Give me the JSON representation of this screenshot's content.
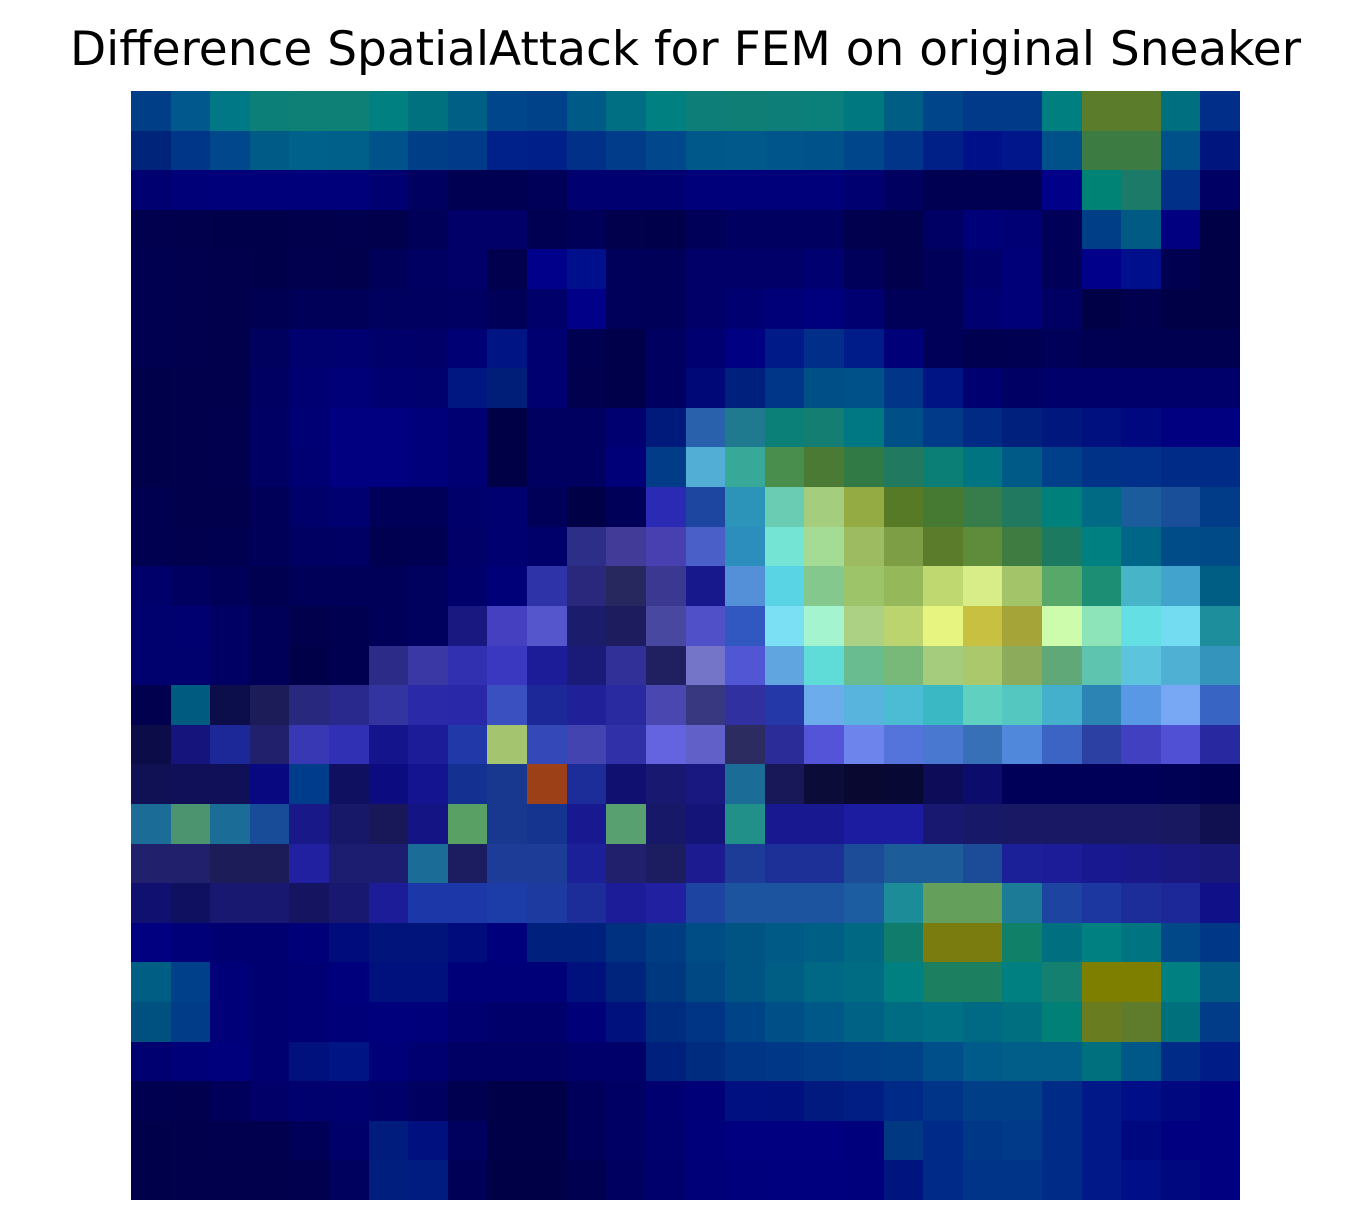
{
  "chart_data": {
    "type": "heatmap",
    "title": "Difference SpatialAttack for FEM on original Sneaker",
    "xlabel": "",
    "ylabel": "",
    "axes_visible": false,
    "grid": false,
    "colorbar": false,
    "rows": 28,
    "cols": 28,
    "cell_colors": [
      [
        "#003f87",
        "#00588c",
        "#007886",
        "#0b7f78",
        "#0e8076",
        "#0e8076",
        "#008080",
        "#00727f",
        "#005f84",
        "#00468a",
        "#00428a",
        "#005a88",
        "#006f84",
        "#008080",
        "#0e7f78",
        "#0f7f76",
        "#0e7f78",
        "#0b7f7a",
        "#007880",
        "#005e84",
        "#00448a",
        "#003a88",
        "#003a88",
        "#007f80",
        "#5a7c2b",
        "#5a7c2b",
        "#006f80",
        "#002e88"
      ],
      [
        "#00247a",
        "#003688",
        "#00478b",
        "#005b86",
        "#00618a",
        "#00608a",
        "#00528a",
        "#003f88",
        "#003a88",
        "#00208a",
        "#001f88",
        "#003088",
        "#003c8a",
        "#00478b",
        "#00578a",
        "#00598a",
        "#00568a",
        "#00528a",
        "#00468b",
        "#00358a",
        "#002088",
        "#001088",
        "#00168a",
        "#00508a",
        "#3c7c42",
        "#3c7c42",
        "#00508a",
        "#00167f"
      ],
      [
        "#000070",
        "#000078",
        "#00007a",
        "#00007a",
        "#00007a",
        "#00007a",
        "#000070",
        "#000060",
        "#000052",
        "#000052",
        "#000058",
        "#000070",
        "#000070",
        "#000070",
        "#00007a",
        "#00007a",
        "#00007a",
        "#00007a",
        "#000070",
        "#000060",
        "#000052",
        "#000052",
        "#000052",
        "#000088",
        "#008274",
        "#1b7a68",
        "#003088",
        "#000064"
      ],
      [
        "#00004e",
        "#00004c",
        "#00004a",
        "#00004a",
        "#00004c",
        "#00004e",
        "#00004c",
        "#000058",
        "#000068",
        "#000068",
        "#000052",
        "#000058",
        "#00004c",
        "#00004a",
        "#000058",
        "#000060",
        "#000060",
        "#000060",
        "#00004e",
        "#00004c",
        "#000064",
        "#000078",
        "#000074",
        "#000058",
        "#003e88",
        "#005a84",
        "#000080",
        "#000046"
      ],
      [
        "#000050",
        "#00004e",
        "#00004c",
        "#00004a",
        "#00004e",
        "#00004c",
        "#000058",
        "#000062",
        "#000068",
        "#00004e",
        "#00008a",
        "#000f8c",
        "#00005a",
        "#000058",
        "#000068",
        "#000068",
        "#000068",
        "#000070",
        "#00005a",
        "#00004c",
        "#000058",
        "#00006a",
        "#000078",
        "#000058",
        "#00008a",
        "#000f8c",
        "#000050",
        "#000046"
      ],
      [
        "#000050",
        "#00004e",
        "#00004c",
        "#000052",
        "#000058",
        "#000058",
        "#00005e",
        "#000060",
        "#000062",
        "#000058",
        "#00006a",
        "#000088",
        "#00005a",
        "#000058",
        "#000068",
        "#000070",
        "#000078",
        "#00007e",
        "#000070",
        "#000058",
        "#000058",
        "#000070",
        "#000078",
        "#000064",
        "#000046",
        "#00004e",
        "#000046",
        "#000046"
      ],
      [
        "#000050",
        "#00004e",
        "#00004c",
        "#00005e",
        "#00006e",
        "#000070",
        "#00006a",
        "#000068",
        "#000075",
        "#001483",
        "#000070",
        "#000050",
        "#00004a",
        "#000060",
        "#000070",
        "#000082",
        "#001a88",
        "#002e88",
        "#001c88",
        "#000078",
        "#000058",
        "#000050",
        "#000052",
        "#000058",
        "#000052",
        "#000050",
        "#000050",
        "#000050"
      ],
      [
        "#00004a",
        "#00004c",
        "#00004c",
        "#000062",
        "#000072",
        "#000078",
        "#000070",
        "#00006e",
        "#001680",
        "#001e78",
        "#000070",
        "#00004e",
        "#00004a",
        "#000060",
        "#000878",
        "#00207e",
        "#003688",
        "#005088",
        "#00508a",
        "#003588",
        "#001483",
        "#000070",
        "#000064",
        "#00006a",
        "#00006a",
        "#00006a",
        "#00006a",
        "#00006a"
      ],
      [
        "#00004a",
        "#00004c",
        "#00004e",
        "#000064",
        "#000075",
        "#000080",
        "#000080",
        "#00007a",
        "#000072",
        "#000046",
        "#000060",
        "#000060",
        "#000070",
        "#001a7c",
        "#2a61ac",
        "#1f7a90",
        "#0b8078",
        "#147e72",
        "#007883",
        "#004f87",
        "#003a88",
        "#002a84",
        "#00207e",
        "#00187e",
        "#00107e",
        "#000880",
        "#000080",
        "#000080"
      ],
      [
        "#00004a",
        "#00004c",
        "#00004e",
        "#000064",
        "#000072",
        "#000080",
        "#000080",
        "#00007a",
        "#000072",
        "#000046",
        "#000060",
        "#000060",
        "#000078",
        "#003c88",
        "#52aed4",
        "#38a898",
        "#4a8e4e",
        "#4a7a33",
        "#327a45",
        "#217a5f",
        "#0b7f76",
        "#007480",
        "#005a88",
        "#00408a",
        "#003288",
        "#00308a",
        "#002c88",
        "#002c88"
      ],
      [
        "#000050",
        "#00004c",
        "#00004c",
        "#000058",
        "#00006a",
        "#000070",
        "#000058",
        "#000058",
        "#00006a",
        "#000070",
        "#000058",
        "#000046",
        "#000058",
        "#2a2ab4",
        "#1d46a0",
        "#2c94b8",
        "#6accb3",
        "#a4cd7e",
        "#94ab44",
        "#577a27",
        "#467a32",
        "#377c4b",
        "#217a5f",
        "#00807a",
        "#006a84",
        "#1a5c9c",
        "#184f98",
        "#003c88"
      ],
      [
        "#000050",
        "#00004e",
        "#000050",
        "#000058",
        "#000062",
        "#000064",
        "#000050",
        "#000052",
        "#000068",
        "#000070",
        "#00006a",
        "#2d2e88",
        "#423c98",
        "#4840b0",
        "#4a60c8",
        "#2b8ebc",
        "#74e4d4",
        "#a4dc95",
        "#9dbb60",
        "#7e9e45",
        "#5a7c2b",
        "#5e8c3a",
        "#3e7c42",
        "#1b7a60",
        "#008080",
        "#006688",
        "#004c88",
        "#004a88"
      ],
      [
        "#00006a",
        "#000060",
        "#000058",
        "#000050",
        "#000058",
        "#000058",
        "#000058",
        "#00005e",
        "#00006a",
        "#000078",
        "#2e33a8",
        "#29287c",
        "#27285e",
        "#3a3890",
        "#16188c",
        "#5490d8",
        "#58d4e4",
        "#84c88e",
        "#9ec46a",
        "#94b85a",
        "#c0d870",
        "#d8ec88",
        "#a4c46a",
        "#58a86a",
        "#1c8e74",
        "#48b4c8",
        "#42a4cc",
        "#005e84"
      ],
      [
        "#00006e",
        "#000070",
        "#000064",
        "#000058",
        "#00004c",
        "#000050",
        "#000058",
        "#00005e",
        "#181880",
        "#4440c0",
        "#5656cc",
        "#1c1c6c",
        "#1c1c5e",
        "#4848a0",
        "#5050c8",
        "#3058c0",
        "#7ce0f4",
        "#a4f4d0",
        "#acd084",
        "#bcd470",
        "#e8f480",
        "#c8c040",
        "#a4a438",
        "#ccfcac",
        "#8ce4b8",
        "#64e0e4",
        "#74dcf0",
        "#1c8e9c"
      ],
      [
        "#00006e",
        "#00006e",
        "#000064",
        "#000058",
        "#000048",
        "#000050",
        "#2c2c88",
        "#3a38a4",
        "#3030b0",
        "#3a38c0",
        "#1c1c98",
        "#1a1a78",
        "#303098",
        "#202060",
        "#7474c8",
        "#5056d4",
        "#60a4e0",
        "#60dcd8",
        "#68bc90",
        "#78b878",
        "#a4cc7c",
        "#acc86c",
        "#8cac5c",
        "#60a878",
        "#5ec4b0",
        "#5cc4dc",
        "#50b0d4",
        "#3494bc"
      ],
      [
        "#00004e",
        "#005b80",
        "#0c0e4c",
        "#1c1c58",
        "#28287e",
        "#29288c",
        "#3434a0",
        "#2a2aa8",
        "#2828a8",
        "#3a50c0",
        "#1c2898",
        "#202098",
        "#2a2aa0",
        "#4a48b0",
        "#383880",
        "#3030a0",
        "#2438a8",
        "#6cacec",
        "#58b4dc",
        "#4cbcd4",
        "#3ab8c4",
        "#60d0c0",
        "#54c8c0",
        "#44b0cc",
        "#2c84b4",
        "#5898e4",
        "#78a8f4",
        "#3864c4"
      ],
      [
        "#0c0c48",
        "#14147c",
        "#1c2898",
        "#20206c",
        "#3838b4",
        "#3030b4",
        "#14148c",
        "#1c1c98",
        "#2038a8",
        "#a4c470",
        "#3548b8",
        "#4444b0",
        "#3030a8",
        "#6464e0",
        "#6060c8",
        "#2c2c60",
        "#2c2c98",
        "#5454d8",
        "#6c84ec",
        "#5474dc",
        "#4878d0",
        "#3870b8",
        "#5088dc",
        "#3c64c4",
        "#2c40a4",
        "#4040c0",
        "#5050d4",
        "#2828a0"
      ],
      [
        "#101054",
        "#101058",
        "#101058",
        "#080880",
        "#003c8c",
        "#101060",
        "#0c0c80",
        "#141490",
        "#143090",
        "#183890",
        "#9c4018",
        "#1c2c98",
        "#101070",
        "#181870",
        "#181880",
        "#1c6c98",
        "#181858",
        "#0c0c38",
        "#080830",
        "#080834",
        "#0c0c58",
        "#0c0c6c",
        "#000058",
        "#000058",
        "#000058",
        "#000058",
        "#000054",
        "#000050"
      ],
      [
        "#1c6c98",
        "#4c9470",
        "#1c6c98",
        "#184c98",
        "#181888",
        "#181868",
        "#181858",
        "#141484",
        "#58a064",
        "#183890",
        "#143490",
        "#181890",
        "#58a070",
        "#181868",
        "#141478",
        "#209088",
        "#181890",
        "#181890",
        "#1c1ca0",
        "#1c1ca0",
        "#181870",
        "#181868",
        "#181864",
        "#181864",
        "#181864",
        "#181864",
        "#181860",
        "#101050"
      ],
      [
        "#20206c",
        "#20206c",
        "#1c1c58",
        "#1c1c58",
        "#2020a0",
        "#1c1c70",
        "#1c1c70",
        "#1c6c98",
        "#1c1c60",
        "#1c3c98",
        "#1c3c98",
        "#1c2098",
        "#20206c",
        "#1c1c60",
        "#1c1c90",
        "#1c3c98",
        "#1c3098",
        "#1c3098",
        "#1c4c98",
        "#1c5c98",
        "#1c5c98",
        "#1c4c98",
        "#1c2098",
        "#1c1c98",
        "#181890",
        "#181888",
        "#181880",
        "#181878"
      ],
      [
        "#101070",
        "#101060",
        "#181870",
        "#181870",
        "#141460",
        "#181870",
        "#1c1c98",
        "#1c38a8",
        "#1c38a8",
        "#1c3ca8",
        "#1c3aa0",
        "#1c2c98",
        "#1c1c98",
        "#2020a0",
        "#1c44a0",
        "#1c54a0",
        "#1c54a0",
        "#1c54a0",
        "#1c5ca0",
        "#1c8c98",
        "#64a05c",
        "#64a05c",
        "#1c7c98",
        "#1c44a0",
        "#1c38a0",
        "#1c2c98",
        "#1c2898",
        "#101088"
      ],
      [
        "#000080",
        "#000078",
        "#000070",
        "#000070",
        "#000078",
        "#000c7c",
        "#00147c",
        "#00147c",
        "#000c7c",
        "#00007c",
        "#00207e",
        "#00207e",
        "#003080",
        "#003c82",
        "#004c84",
        "#005484",
        "#005a86",
        "#005f84",
        "#006882",
        "#107c6c",
        "#7a7c10",
        "#7a7c10",
        "#108068",
        "#006f80",
        "#008080",
        "#007480",
        "#004888",
        "#003888"
      ],
      [
        "#005d84",
        "#00408a",
        "#000078",
        "#000070",
        "#000074",
        "#00007c",
        "#00107c",
        "#00107c",
        "#000078",
        "#000078",
        "#000078",
        "#00107c",
        "#00247c",
        "#003880",
        "#004884",
        "#005484",
        "#005e84",
        "#006884",
        "#006c84",
        "#008080",
        "#1c8060",
        "#1c8060",
        "#008080",
        "#148070",
        "#7e7e00",
        "#7e7e00",
        "#008080",
        "#005a84"
      ],
      [
        "#005080",
        "#003c88",
        "#000078",
        "#000070",
        "#000074",
        "#000078",
        "#00007c",
        "#00007a",
        "#000070",
        "#00006a",
        "#00006a",
        "#000078",
        "#00107c",
        "#002c80",
        "#003484",
        "#004488",
        "#005088",
        "#005888",
        "#006284",
        "#006c84",
        "#007084",
        "#006a84",
        "#007080",
        "#008076",
        "#6a7c20",
        "#5e7c2c",
        "#00707c",
        "#003c88"
      ],
      [
        "#000070",
        "#000078",
        "#00007c",
        "#000070",
        "#00107c",
        "#001484",
        "#000078",
        "#000070",
        "#000064",
        "#000064",
        "#000064",
        "#00006a",
        "#00006a",
        "#00207e",
        "#002c80",
        "#003484",
        "#003888",
        "#003c88",
        "#004088",
        "#004288",
        "#004e8a",
        "#005a8a",
        "#005e88",
        "#005e88",
        "#00707e",
        "#005888",
        "#002c88",
        "#001c86"
      ],
      [
        "#000050",
        "#00004e",
        "#00005a",
        "#000068",
        "#00006e",
        "#000070",
        "#00006a",
        "#000060",
        "#000050",
        "#000048",
        "#000048",
        "#00005a",
        "#000064",
        "#000070",
        "#000078",
        "#001080",
        "#00107e",
        "#001a80",
        "#001e84",
        "#002a88",
        "#003488",
        "#003e88",
        "#003e88",
        "#002c88",
        "#001888",
        "#000f88",
        "#000880",
        "#000080"
      ],
      [
        "#00004a",
        "#00004c",
        "#00004e",
        "#00004e",
        "#000058",
        "#00006a",
        "#001c7c",
        "#00107e",
        "#00005e",
        "#000048",
        "#000048",
        "#00005a",
        "#000064",
        "#00006e",
        "#00007a",
        "#000080",
        "#000080",
        "#000080",
        "#00007c",
        "#003882",
        "#002a88",
        "#003888",
        "#003a88",
        "#002c88",
        "#001888",
        "#000880",
        "#000080",
        "#000080"
      ],
      [
        "#00004a",
        "#00004c",
        "#00004c",
        "#00004c",
        "#00004e",
        "#00005e",
        "#001e7e",
        "#001c80",
        "#000056",
        "#000046",
        "#000046",
        "#000050",
        "#000060",
        "#00006c",
        "#000078",
        "#00007c",
        "#00007e",
        "#00007e",
        "#00007c",
        "#001480",
        "#002a88",
        "#003488",
        "#003488",
        "#002c88",
        "#001888",
        "#000f88",
        "#000880",
        "#000080"
      ]
    ]
  }
}
